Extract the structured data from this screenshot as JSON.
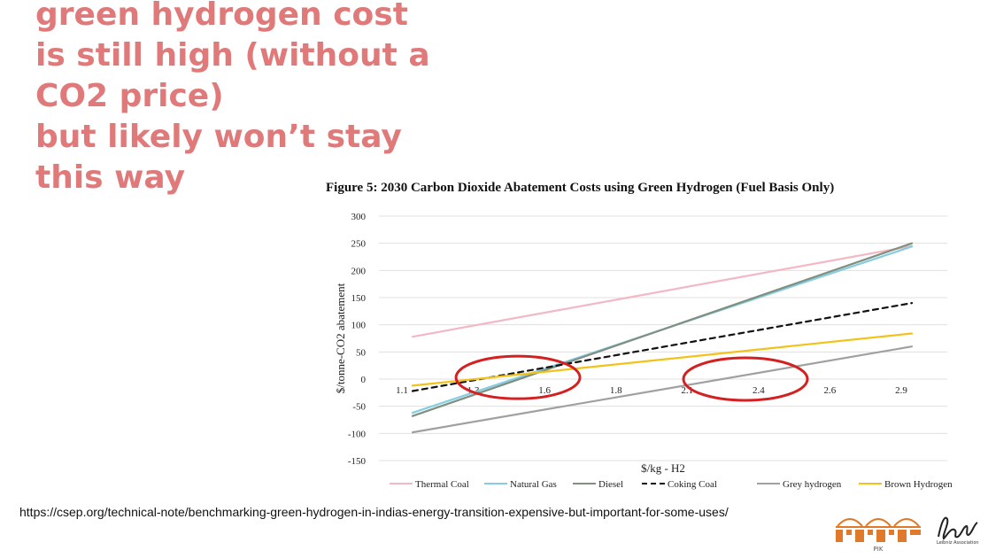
{
  "headline": {
    "lines": [
      "green hydrogen cost",
      "is still high (without a",
      "CO2 price)",
      "but likely won’t stay",
      "this way"
    ]
  },
  "source_url": "https://csep.org/technical-note/benchmarking-green-hydrogen-in-indias-energy-transition-expensive-but-important-for-some-uses/",
  "logos": {
    "pik": "PIK",
    "leibniz": "Leibniz Association"
  },
  "chart_data": {
    "type": "line",
    "title": "Figure 5: 2030 Carbon Dioxide Abatement Costs using Green Hydrogen (Fuel Basis Only)",
    "xlabel": "$/kg - H2",
    "ylabel": "$/tonne-CO2 abatement",
    "xlim": [
      1.1,
      2.9
    ],
    "ylim": [
      -150,
      300
    ],
    "x_ticks": [
      "1.1",
      "1.3",
      "1.6",
      "1.8",
      "2.1",
      "2.4",
      "2.6",
      "2.9"
    ],
    "y_ticks": [
      300,
      250,
      200,
      150,
      100,
      50,
      0,
      -50,
      -100,
      -150
    ],
    "grid": "horizontal",
    "legend_position": "bottom",
    "series": [
      {
        "name": "Thermal Coal",
        "color": "#f2b8c4",
        "dash": false,
        "points": [
          [
            1.1,
            78
          ],
          [
            2.9,
            245
          ]
        ]
      },
      {
        "name": "Natural Gas",
        "color": "#86cde0",
        "dash": false,
        "points": [
          [
            1.1,
            -62
          ],
          [
            2.9,
            244
          ]
        ]
      },
      {
        "name": "Diesel",
        "color": "#7f8f80",
        "dash": false,
        "points": [
          [
            1.1,
            -68
          ],
          [
            2.9,
            250
          ]
        ]
      },
      {
        "name": "Coking Coal",
        "color": "#111111",
        "dash": true,
        "points": [
          [
            1.1,
            -22
          ],
          [
            2.9,
            140
          ]
        ]
      },
      {
        "name": "Grey hydrogen",
        "color": "#a0a0a0",
        "dash": false,
        "points": [
          [
            1.1,
            -98
          ],
          [
            2.9,
            60
          ]
        ]
      },
      {
        "name": "Brown Hydrogen",
        "color": "#f2c21a",
        "dash": false,
        "points": [
          [
            1.1,
            -12
          ],
          [
            2.9,
            84
          ]
        ]
      }
    ],
    "annotations": [
      {
        "shape": "ellipse",
        "color": "#d42020",
        "center": [
          1.48,
          3
        ]
      },
      {
        "shape": "ellipse",
        "color": "#d42020",
        "center": [
          2.3,
          0
        ]
      }
    ]
  }
}
